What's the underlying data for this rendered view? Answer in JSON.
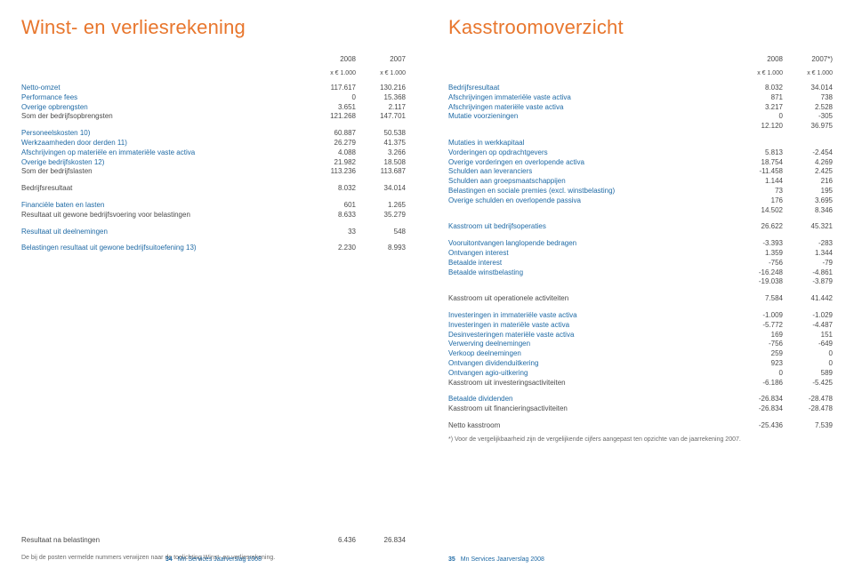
{
  "colors": {
    "title": "#e8762d",
    "link": "#1f6aa5",
    "text": "#4a4a4a",
    "muted": "#6a6a6a"
  },
  "left": {
    "title": "Winst- en verliesrekening",
    "col1_year": "2008",
    "col2_year": "2007",
    "col1_unit": "x € 1.000",
    "col2_unit": "x € 1.000",
    "groups": [
      {
        "rows": [
          {
            "label": "Netto-omzet",
            "a": "117.617",
            "b": "130.216",
            "link": true
          },
          {
            "label": "Performance fees",
            "a": "0",
            "b": "15.368",
            "link": true
          },
          {
            "label": "Overige opbrengsten",
            "a": "3.651",
            "b": "2.117",
            "link": true
          },
          {
            "label": "Som der bedrijfsopbrengsten",
            "a": "121.268",
            "b": "147.701"
          }
        ]
      },
      {
        "rows": [
          {
            "label": "Personeelskosten 10)",
            "a": "60.887",
            "b": "50.538",
            "link": true
          },
          {
            "label": "Werkzaamheden door derden 11)",
            "a": "26.279",
            "b": "41.375",
            "link": true
          },
          {
            "label": "Afschrijvingen op materiële en immateriële vaste activa",
            "a": "4.088",
            "b": "3.266",
            "link": true
          },
          {
            "label": "Overige bedrijfskosten 12)",
            "a": "21.982",
            "b": "18.508",
            "link": true
          },
          {
            "label": "Som der bedrijfslasten",
            "a": "113.236",
            "b": "113.687"
          }
        ]
      },
      {
        "rows": [
          {
            "label": "Bedrijfsresultaat",
            "a": "8.032",
            "b": "34.014"
          }
        ]
      },
      {
        "rows": [
          {
            "label": "Financiële baten en lasten",
            "a": "601",
            "b": "1.265",
            "link": true
          },
          {
            "label": "Resultaat uit gewone bedrijfsvoering voor belastingen",
            "a": "8.633",
            "b": "35.279"
          }
        ]
      },
      {
        "rows": [
          {
            "label": "Resultaat uit deelnemingen",
            "a": "33",
            "b": "548",
            "link": true
          }
        ]
      },
      {
        "rows": [
          {
            "label": "Belastingen resultaat uit gewone bedrijfsuitoefening 13)",
            "a": "2.230",
            "b": "8.993",
            "link": true
          }
        ]
      }
    ],
    "final": {
      "label": "Resultaat na belastingen",
      "a": "6.436",
      "b": "26.834"
    },
    "note": "De bij de posten vermelde nummers verwijzen naar de toelichting Winst- en verliesrekening.",
    "footer_num": "34",
    "footer_text": "Mn Services Jaarverslag 2008"
  },
  "right": {
    "title": "Kasstroomoverzicht",
    "col1_year": "2008",
    "col2_year": "2007*)",
    "col1_unit": "x € 1.000",
    "col2_unit": "x € 1.000",
    "groups": [
      {
        "rows": [
          {
            "label": "Bedrijfsresultaat",
            "a": "8.032",
            "b": "34.014",
            "link": true
          },
          {
            "label": "Afschrijvingen immateriële vaste activa",
            "a": "871",
            "b": "738",
            "link": true
          },
          {
            "label": "Afschrijvingen materiële vaste activa",
            "a": "3.217",
            "b": "2.528",
            "link": true
          },
          {
            "label": "Mutatie voorzieningen",
            "a": "0",
            "b": "-305",
            "link": true
          },
          {
            "label": "",
            "a": "12.120",
            "b": "36.975"
          }
        ]
      },
      {
        "rows": [
          {
            "label": "Mutaties in werkkapitaal",
            "a": "",
            "b": "",
            "link": true
          },
          {
            "label": "Vorderingen op opdrachtgevers",
            "a": "5.813",
            "b": "-2.454",
            "link": true
          },
          {
            "label": "Overige vorderingen en overlopende activa",
            "a": "18.754",
            "b": "4.269",
            "link": true
          },
          {
            "label": "Schulden aan leveranciers",
            "a": "-11.458",
            "b": "2.425",
            "link": true
          },
          {
            "label": "Schulden aan groepsmaatschappijen",
            "a": "1.144",
            "b": "216",
            "link": true
          },
          {
            "label": "Belastingen en sociale premies (excl. winstbelasting)",
            "a": "73",
            "b": "195",
            "link": true
          },
          {
            "label": "Overige schulden en overlopende passiva",
            "a": "176",
            "b": "3.695",
            "link": true
          },
          {
            "label": "",
            "a": "14.502",
            "b": "8.346"
          }
        ]
      },
      {
        "rows": [
          {
            "label": "Kasstroom uit bedrijfsoperaties",
            "a": "26.622",
            "b": "45.321",
            "link": true
          }
        ]
      },
      {
        "rows": [
          {
            "label": "Vooruitontvangen langlopende bedragen",
            "a": "-3.393",
            "b": "-283",
            "link": true
          },
          {
            "label": "Ontvangen interest",
            "a": "1.359",
            "b": "1.344",
            "link": true
          },
          {
            "label": "Betaalde interest",
            "a": "-756",
            "b": "-79",
            "link": true
          },
          {
            "label": "Betaalde winstbelasting",
            "a": "-16.248",
            "b": "-4.861",
            "link": true
          },
          {
            "label": "",
            "a": "-19.038",
            "b": "-3.879"
          }
        ]
      },
      {
        "rows": [
          {
            "label": "Kasstroom uit operationele activiteiten",
            "a": "7.584",
            "b": "41.442"
          }
        ]
      },
      {
        "rows": [
          {
            "label": "Investeringen in immateriële vaste activa",
            "a": "-1.009",
            "b": "-1.029",
            "link": true
          },
          {
            "label": "Investeringen in materiële vaste activa",
            "a": "-5.772",
            "b": "-4.487",
            "link": true
          },
          {
            "label": "Desinvesteringen materiële vaste activa",
            "a": "169",
            "b": "151",
            "link": true
          },
          {
            "label": "Verwerving deelnemingen",
            "a": "-756",
            "b": "-649",
            "link": true
          },
          {
            "label": "Verkoop deelnemingen",
            "a": "259",
            "b": "0",
            "link": true
          },
          {
            "label": "Ontvangen dividenduitkering",
            "a": "923",
            "b": "0",
            "link": true
          },
          {
            "label": "Ontvangen agio-uitkering",
            "a": "0",
            "b": "589",
            "link": true
          },
          {
            "label": "Kasstroom uit investeringsactiviteiten",
            "a": "-6.186",
            "b": "-5.425"
          }
        ]
      },
      {
        "rows": [
          {
            "label": "Betaalde dividenden",
            "a": "-26.834",
            "b": "-28.478",
            "link": true
          },
          {
            "label": "Kasstroom uit financieringsactiviteiten",
            "a": "-26.834",
            "b": "-28.478"
          }
        ]
      },
      {
        "rows": [
          {
            "label": "Netto kasstroom",
            "a": "-25.436",
            "b": "7.539"
          }
        ]
      }
    ],
    "note": "*) Voor de vergelijkbaarheid zijn de vergelijkende cijfers aangepast ten opzichte van de jaarrekening 2007.",
    "footer_num": "35",
    "footer_text": "Mn Services Jaarverslag 2008"
  }
}
